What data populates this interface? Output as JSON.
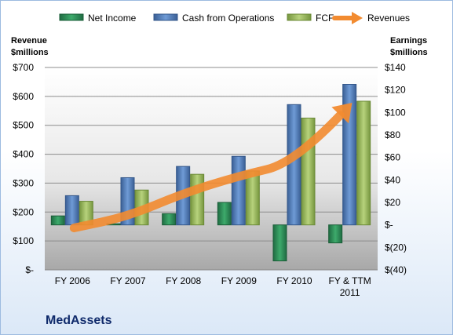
{
  "chart_data": {
    "type": "bar",
    "title": "MedAssets",
    "categories": [
      "FY 2006",
      "FY 2007",
      "FY 2008",
      "FY 2009",
      "FY 2010",
      "FY & TTM 2011"
    ],
    "left_axis": {
      "label": "Revenue $millions",
      "ylim": [
        0,
        700
      ],
      "ticks": [
        "$-",
        "$100",
        "$200",
        "$300",
        "$400",
        "$500",
        "$600",
        "$700"
      ]
    },
    "right_axis": {
      "label": "Earnings $millions",
      "ylim": [
        -40,
        140
      ],
      "ticks": [
        "$(40)",
        "$(20)",
        "$-",
        "$20",
        "$40",
        "$60",
        "$80",
        "$100",
        "$120",
        "$140"
      ]
    },
    "series": [
      {
        "name": "Net Income",
        "axis": "right",
        "kind": "bar",
        "color": "#2e8b57",
        "values": [
          8,
          1,
          10,
          20,
          -32,
          -16
        ]
      },
      {
        "name": "Cash from Operations",
        "axis": "right",
        "kind": "bar",
        "color": "#4f81bd",
        "values": [
          26,
          42,
          52,
          61,
          107,
          125
        ]
      },
      {
        "name": "FCF",
        "axis": "right",
        "kind": "bar",
        "color": "#9bbb59",
        "values": [
          21,
          31,
          45,
          48,
          95,
          110
        ]
      },
      {
        "name": "Revenues",
        "axis": "left",
        "kind": "arrow-line",
        "color": "#f28b30",
        "values": [
          145,
          185,
          265,
          325,
          370,
          570
        ]
      }
    ],
    "legend_position": "top",
    "grid": true
  }
}
